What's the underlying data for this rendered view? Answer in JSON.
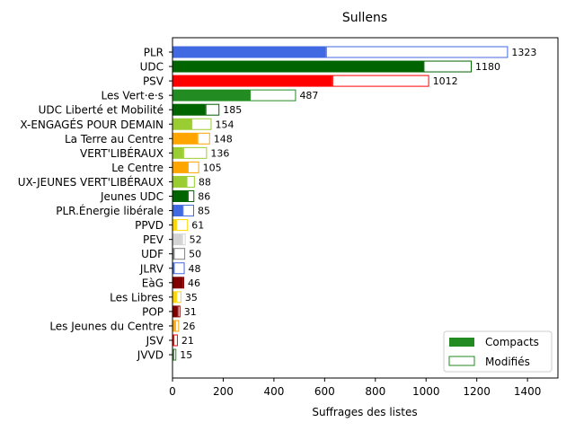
{
  "chart_data": {
    "type": "bar",
    "orientation": "horizontal",
    "stacked": true,
    "title": "Sullens",
    "xlabel": "Suffrages des listes",
    "ylabel": "",
    "xlim": [
      0,
      1520
    ],
    "xticks": [
      0,
      200,
      400,
      600,
      800,
      1000,
      1200,
      1400
    ],
    "grid": false,
    "legend_position": "lower-right",
    "series": [
      {
        "name": "Compacts",
        "style": "filled"
      },
      {
        "name": "Modifiés",
        "style": "outlined"
      }
    ],
    "legend_color": "#228b22",
    "categories": [
      "PLR",
      "UDC",
      "PSV",
      "Les Vert·e·s",
      "UDC Liberté et Mobilité",
      "X-ENGAGÉS POUR DEMAIN",
      "La Terre au Centre",
      "VERT'LIBÉRAUX",
      "Le Centre",
      "UX-JEUNES VERT'LIBÉRAUX",
      "Jeunes UDC",
      "PLR.Énergie libérale",
      "PPVD",
      "PEV",
      "UDF",
      "JLRV",
      "EàG",
      "Les Libres",
      "POP",
      "Les Jeunes du Centre",
      "JSV",
      "JVVD"
    ],
    "compacts": [
      605,
      990,
      630,
      305,
      130,
      75,
      98,
      42,
      60,
      55,
      60,
      40,
      15,
      38,
      5,
      5,
      40,
      15,
      20,
      10,
      4,
      3
    ],
    "modifies": [
      718,
      190,
      382,
      182,
      55,
      79,
      50,
      94,
      45,
      33,
      26,
      45,
      46,
      14,
      45,
      43,
      6,
      20,
      11,
      16,
      17,
      12
    ],
    "totals": [
      "1323",
      "1180",
      "1012",
      "487",
      "185",
      "154",
      "148",
      "136",
      "105",
      "88",
      "86",
      "85",
      "61",
      "52",
      "50",
      "48",
      "46",
      "35",
      "31",
      "26",
      "21",
      "15"
    ],
    "colors": [
      "#4169e1",
      "#006400",
      "#ff0000",
      "#228b22",
      "#006400",
      "#9acd32",
      "#ffa500",
      "#9acd32",
      "#ffa500",
      "#9acd32",
      "#006400",
      "#4169e1",
      "#ffd700",
      "#d3d3d3",
      "#808080",
      "#4169e1",
      "#800000",
      "#ffd700",
      "#800000",
      "#ffa500",
      "#ff0000",
      "#228b22"
    ]
  }
}
